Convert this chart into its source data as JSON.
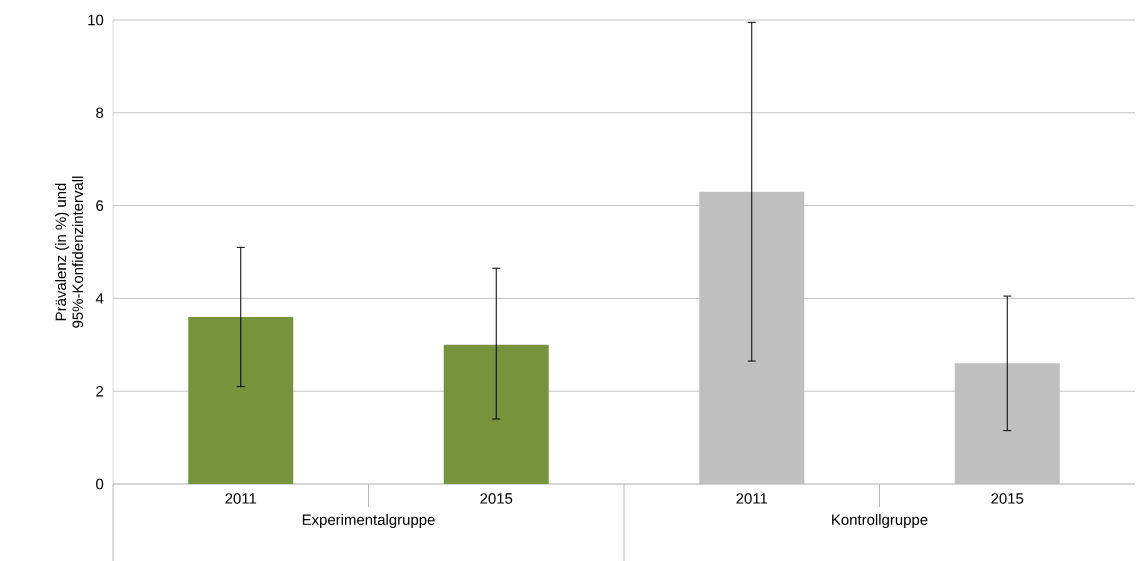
{
  "chart_data": {
    "type": "bar",
    "categories": [
      "2011",
      "2015",
      "2011",
      "2015"
    ],
    "values": [
      3.6,
      3.0,
      6.3,
      2.6
    ],
    "colors": [
      "#77933c",
      "#77933c",
      "#bfbfbf",
      "#bfbfbf"
    ],
    "errors": [
      [
        2.1,
        5.1
      ],
      [
        1.4,
        4.65
      ],
      [
        2.65,
        9.95
      ],
      [
        1.15,
        4.05
      ]
    ],
    "ylabel": "Prävalenz (in %) und 95%-Konfidenzintervall",
    "ylim": [
      0,
      10
    ],
    "yticks": [
      0,
      2,
      4,
      6,
      8,
      10
    ],
    "grid": "y",
    "annotations": [
      "Experimentalgruppe",
      "Kontrollgruppe"
    ]
  }
}
